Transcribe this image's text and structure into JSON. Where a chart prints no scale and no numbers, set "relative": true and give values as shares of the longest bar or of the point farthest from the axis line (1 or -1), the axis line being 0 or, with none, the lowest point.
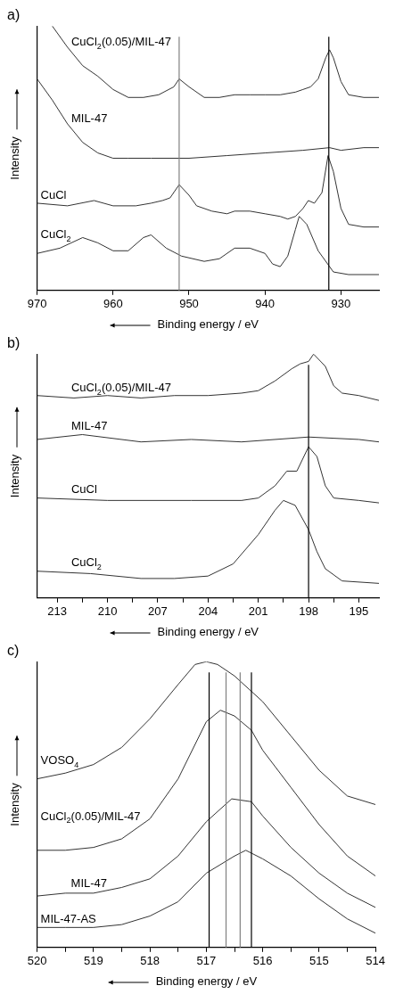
{
  "chart_data": [
    {
      "type": "line",
      "title": "a)",
      "xlabel": "Binding energy / eV",
      "ylabel": "Intensity",
      "relative": true,
      "xlim": [
        970,
        925
      ],
      "xticks": [
        970,
        960,
        950,
        940,
        930
      ],
      "ref_lines": [
        {
          "axis": "x",
          "value": 951.3,
          "color": "#808080"
        },
        {
          "axis": "x",
          "value": 931.6,
          "color": "#000000"
        }
      ],
      "series": [
        {
          "name": "CuCl$_{2}$(0.05)/MIL-47",
          "color": "#333333",
          "x": [
            968,
            966,
            964,
            962,
            960,
            958,
            956,
            954,
            952,
            951.3,
            950,
            948,
            946,
            944,
            942,
            940,
            938,
            936,
            935,
            934,
            933,
            932,
            931.5,
            931,
            930,
            929,
            927,
            925
          ],
          "values": [
            1.0,
            0.92,
            0.85,
            0.81,
            0.76,
            0.73,
            0.73,
            0.74,
            0.77,
            0.8,
            0.77,
            0.73,
            0.73,
            0.74,
            0.74,
            0.74,
            0.74,
            0.75,
            0.76,
            0.77,
            0.8,
            0.88,
            0.91,
            0.88,
            0.79,
            0.74,
            0.73,
            0.73
          ]
        },
        {
          "name": "MIL-47",
          "color": "#333333",
          "x": [
            970,
            968,
            966,
            964,
            962,
            960,
            958,
            955,
            950,
            945,
            940,
            935,
            931.5,
            930,
            927,
            925
          ],
          "values": [
            0.8,
            0.72,
            0.63,
            0.56,
            0.52,
            0.5,
            0.5,
            0.5,
            0.5,
            0.51,
            0.52,
            0.53,
            0.54,
            0.53,
            0.54,
            0.54
          ]
        },
        {
          "name": "CuCl",
          "color": "#333333",
          "x": [
            970,
            966,
            962.5,
            960,
            957,
            955,
            953.5,
            952.5,
            951.3,
            950,
            949,
            947,
            945,
            944,
            942,
            940,
            938,
            937,
            936,
            935,
            934.3,
            933.5,
            932.5,
            931.7,
            931,
            930,
            929,
            927,
            925
          ],
          "values": [
            0.33,
            0.32,
            0.34,
            0.32,
            0.32,
            0.33,
            0.34,
            0.35,
            0.4,
            0.36,
            0.32,
            0.3,
            0.29,
            0.3,
            0.3,
            0.29,
            0.28,
            0.27,
            0.28,
            0.31,
            0.34,
            0.33,
            0.37,
            0.51,
            0.45,
            0.31,
            0.25,
            0.24,
            0.24
          ]
        },
        {
          "name": "CuCl$_{2}$",
          "color": "#333333",
          "x": [
            970,
            967,
            964,
            962,
            960,
            958,
            956,
            955,
            953,
            951,
            948,
            946,
            944,
            942,
            940,
            939,
            938,
            937,
            936,
            935.5,
            934.5,
            933,
            931,
            929,
            925
          ],
          "values": [
            0.14,
            0.16,
            0.2,
            0.18,
            0.15,
            0.15,
            0.2,
            0.21,
            0.16,
            0.13,
            0.11,
            0.12,
            0.16,
            0.16,
            0.14,
            0.1,
            0.09,
            0.13,
            0.23,
            0.28,
            0.25,
            0.15,
            0.07,
            0.06,
            0.06
          ]
        }
      ]
    },
    {
      "type": "line",
      "title": "b)",
      "xlabel": "Binding energy / eV",
      "ylabel": "Intensity",
      "relative": true,
      "xlim": [
        214.2,
        193.8
      ],
      "xticks": [
        213,
        {
          "value": 211.5,
          "label": null
        },
        210,
        {
          "value": 208.5,
          "label": null
        },
        207,
        {
          "value": 205.5,
          "label": null
        },
        204,
        {
          "value": 202.5,
          "label": null
        },
        201,
        {
          "value": 199.5,
          "label": null
        },
        198,
        {
          "value": 196.5,
          "label": null
        },
        195
      ],
      "ref_lines": [
        {
          "axis": "x",
          "value": 198,
          "color": "#000000"
        }
      ],
      "series": [
        {
          "name": "CuCl$_{2}$(0.05)/MIL-47",
          "color": "#333333",
          "x": [
            214.2,
            212,
            210,
            208,
            206,
            204,
            202,
            201,
            200,
            199,
            198.5,
            198,
            197.7,
            197,
            196.5,
            196,
            195,
            193.8
          ],
          "values": [
            0.83,
            0.82,
            0.83,
            0.82,
            0.83,
            0.83,
            0.84,
            0.85,
            0.89,
            0.94,
            0.96,
            0.97,
            1.0,
            0.95,
            0.87,
            0.84,
            0.83,
            0.81
          ]
        },
        {
          "name": "MIL-47",
          "color": "#333333",
          "x": [
            214.2,
            211.5,
            208,
            205,
            202,
            198,
            195,
            193.8
          ],
          "values": [
            0.65,
            0.67,
            0.64,
            0.65,
            0.64,
            0.66,
            0.65,
            0.64
          ]
        },
        {
          "name": "CuCl",
          "color": "#333333",
          "x": [
            214.2,
            210,
            205,
            202,
            201,
            200,
            199.3,
            198.7,
            198,
            197.5,
            197,
            196.5,
            195,
            193.8
          ],
          "values": [
            0.41,
            0.4,
            0.4,
            0.4,
            0.41,
            0.46,
            0.52,
            0.52,
            0.62,
            0.58,
            0.46,
            0.41,
            0.4,
            0.39
          ]
        },
        {
          "name": "CuCl$_{2}$",
          "color": "#333333",
          "x": [
            214.2,
            211,
            208,
            206,
            204,
            202.5,
            201,
            200,
            199.5,
            198.8,
            198,
            197.5,
            197,
            196,
            193.8
          ],
          "values": [
            0.11,
            0.1,
            0.08,
            0.08,
            0.09,
            0.14,
            0.26,
            0.36,
            0.4,
            0.38,
            0.28,
            0.19,
            0.12,
            0.07,
            0.06
          ]
        }
      ]
    },
    {
      "type": "line",
      "title": "c)",
      "xlabel": "Binding energy / eV",
      "ylabel": "Intensity",
      "relative": true,
      "xlim": [
        520,
        514
      ],
      "xticks": [
        520,
        {
          "value": 519.5,
          "label": null
        },
        519,
        {
          "value": 518.5,
          "label": null
        },
        518,
        {
          "value": 517.5,
          "label": null
        },
        517,
        {
          "value": 516.5,
          "label": null
        },
        516,
        {
          "value": 515.5,
          "label": null
        },
        515,
        {
          "value": 514.5,
          "label": null
        },
        514
      ],
      "ref_lines": [
        {
          "axis": "x",
          "value": 516.95,
          "color": "#000000"
        },
        {
          "axis": "x",
          "value": 516.65,
          "color": "#808080"
        },
        {
          "axis": "x",
          "value": 516.4,
          "color": "#808080"
        },
        {
          "axis": "x",
          "value": 516.2,
          "color": "#000000"
        }
      ],
      "series": [
        {
          "name": "VOSO$_{4}$",
          "color": "#333333",
          "x": [
            520,
            519.5,
            519,
            518.5,
            518,
            517.5,
            517.2,
            517,
            516.8,
            516.5,
            516,
            515.5,
            515,
            514.5,
            514
          ],
          "values": [
            0.59,
            0.61,
            0.64,
            0.7,
            0.8,
            0.92,
            0.99,
            1.0,
            0.99,
            0.95,
            0.86,
            0.74,
            0.62,
            0.53,
            0.5
          ]
        },
        {
          "name": "CuCl$_{2}$(0.05)/MIL-47",
          "color": "#333333",
          "x": [
            520,
            519.5,
            519,
            518.5,
            518,
            517.5,
            517,
            516.75,
            516.5,
            516.2,
            516,
            515.5,
            515,
            514.5,
            514
          ],
          "values": [
            0.34,
            0.34,
            0.35,
            0.38,
            0.45,
            0.59,
            0.79,
            0.83,
            0.81,
            0.76,
            0.69,
            0.56,
            0.43,
            0.32,
            0.25
          ]
        },
        {
          "name": "MIL-47",
          "color": "#333333",
          "x": [
            520,
            519.5,
            519,
            518.5,
            518,
            517.5,
            517,
            516.55,
            516.2,
            516,
            515.5,
            515,
            514.5,
            514
          ],
          "values": [
            0.18,
            0.19,
            0.19,
            0.21,
            0.24,
            0.32,
            0.44,
            0.52,
            0.51,
            0.46,
            0.35,
            0.26,
            0.19,
            0.14
          ]
        },
        {
          "name": "MIL-47-AS",
          "color": "#333333",
          "x": [
            520,
            519.5,
            519,
            518.5,
            518,
            517.5,
            517,
            516.5,
            516.3,
            516,
            515.5,
            515,
            514.5,
            514
          ],
          "values": [
            0.07,
            0.07,
            0.07,
            0.08,
            0.11,
            0.16,
            0.26,
            0.32,
            0.34,
            0.31,
            0.25,
            0.17,
            0.1,
            0.05
          ]
        }
      ]
    }
  ]
}
